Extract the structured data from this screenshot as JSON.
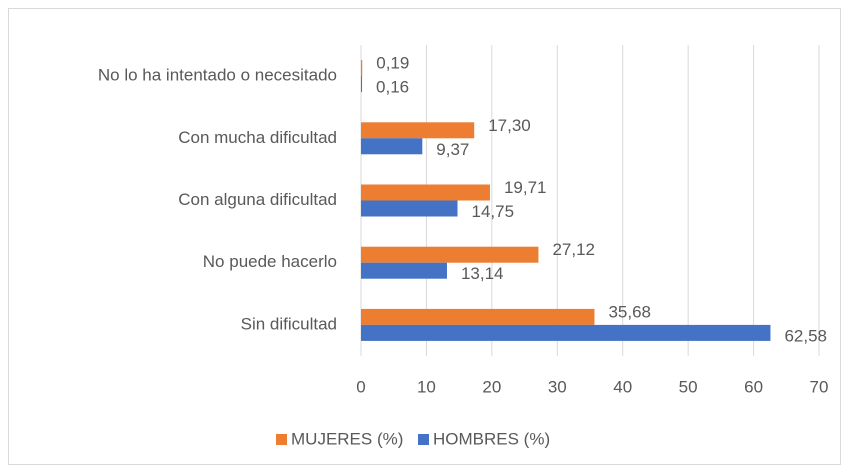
{
  "chart_data": {
    "type": "hbar",
    "categories": [
      "No lo ha intentado o necesitado",
      "Con mucha dificultad",
      "Con alguna dificultad",
      "No puede hacerlo",
      "Sin dificultad"
    ],
    "series": [
      {
        "name": "MUJERES (%)",
        "color": "#ed7d31",
        "values": [
          0.19,
          17.3,
          19.71,
          27.12,
          35.68
        ],
        "value_labels": [
          "0,19",
          "17,30",
          "19,71",
          "27,12",
          "35,68"
        ]
      },
      {
        "name": "HOMBRES (%)",
        "color": "#4472c4",
        "values": [
          0.16,
          9.37,
          14.75,
          13.14,
          62.58
        ],
        "value_labels": [
          "0,16",
          "9,37",
          "14,75",
          "13,14",
          "62,58"
        ]
      }
    ],
    "xlim": [
      0,
      70
    ],
    "xticks": [
      0,
      10,
      20,
      30,
      40,
      50,
      60,
      70
    ],
    "grid": true,
    "legend": "bottom"
  }
}
